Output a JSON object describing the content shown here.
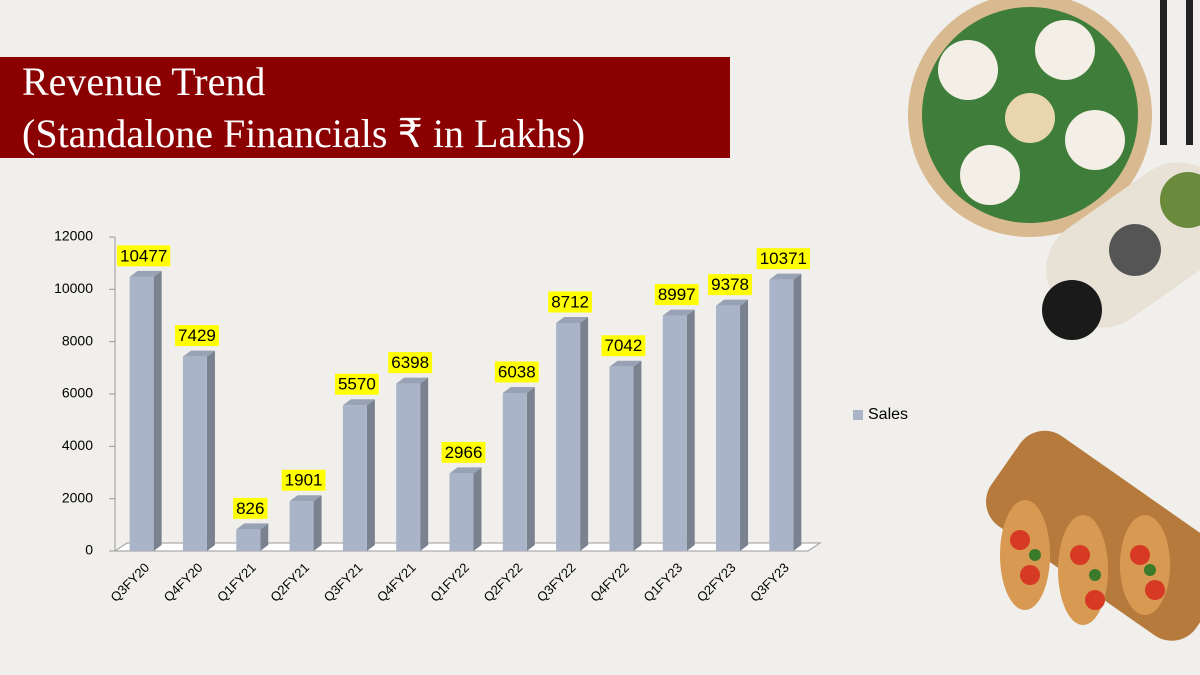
{
  "chart_data": {
    "type": "bar",
    "title": "Revenue Trend",
    "subtitle": "(Standalone Financials ₹ in Lakhs)",
    "categories": [
      "Q3FY20",
      "Q4FY20",
      "Q1FY21",
      "Q2FY21",
      "Q3FY21",
      "Q4FY21",
      "Q1FY22",
      "Q2FY22",
      "Q3FY22",
      "Q4FY22",
      "Q1FY23",
      "Q2FY23",
      "Q3FY23"
    ],
    "series": [
      {
        "name": "Sales",
        "color": "#a9b4c8",
        "values": [
          10477,
          7429,
          826,
          1901,
          5570,
          6398,
          2966,
          6038,
          8712,
          7042,
          8997,
          9378,
          10371
        ]
      }
    ],
    "ylim": [
      0,
      12000
    ],
    "yticks": [
      0,
      2000,
      4000,
      6000,
      8000,
      10000,
      12000
    ],
    "legend": "right"
  }
}
